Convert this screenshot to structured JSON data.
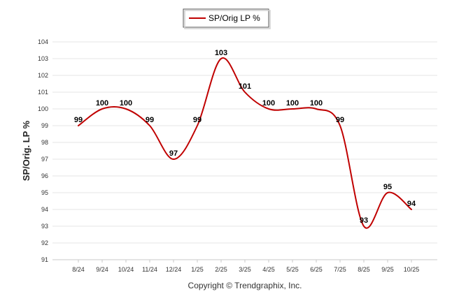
{
  "chart_data": {
    "type": "line",
    "title": "",
    "xlabel": "",
    "ylabel": "SP/Orig. LP %",
    "ylim": [
      91,
      104
    ],
    "y_ticks": [
      "91",
      "92",
      "93",
      "94",
      "95",
      "96",
      "97",
      "98",
      "99",
      "100",
      "101",
      "102",
      "103",
      "104"
    ],
    "grid": "horizontal",
    "legend_position": "top-center",
    "categories": [
      "8/24",
      "9/24",
      "10/24",
      "11/24",
      "12/24",
      "1/25",
      "2/25",
      "3/25",
      "4/25",
      "5/25",
      "6/25",
      "7/25",
      "8/25",
      "9/25",
      "10/25"
    ],
    "series": [
      {
        "name": "SP/Orig LP %",
        "color": "#c00000",
        "values": [
          99,
          100,
          100,
          99,
          97,
          99,
          103,
          101,
          100,
          100,
          100,
          99,
          93,
          95,
          94
        ],
        "labels": [
          "99",
          "100",
          "100",
          "99",
          "97",
          "99",
          "103",
          "101",
          "100",
          "100",
          "100",
          "99",
          "93",
          "95",
          "94"
        ]
      }
    ],
    "copyright": "Copyright © Trendgraphix, Inc."
  },
  "colors": {
    "line": "#c00000",
    "grid": "#e6e6e6",
    "axis": "#cccccc",
    "background": "#ffffff"
  }
}
